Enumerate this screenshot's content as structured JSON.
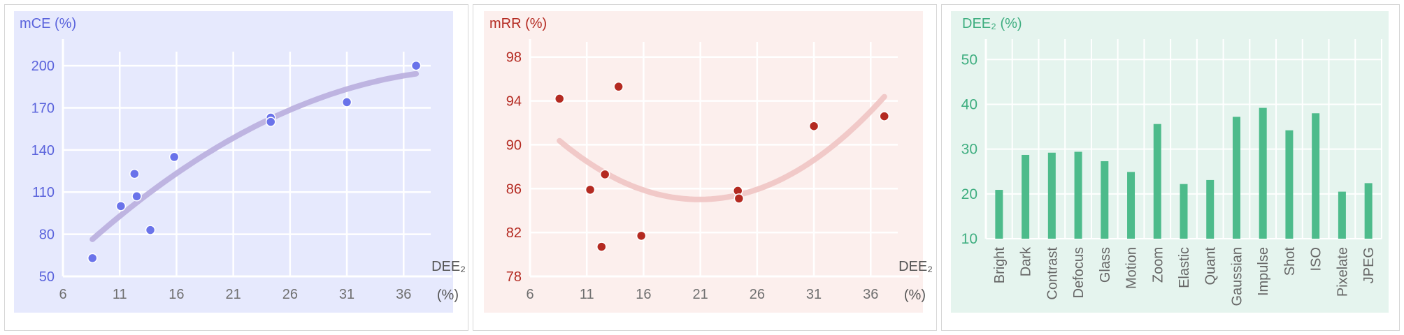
{
  "chart_data": [
    {
      "type": "scatter",
      "ylabel": "mCE (%)",
      "xlabel": "DEE₂ (%)",
      "xticks": [
        6,
        11,
        16,
        21,
        26,
        31,
        36
      ],
      "yticks": [
        50,
        80,
        110,
        140,
        170,
        200
      ],
      "xlim": [
        6,
        39
      ],
      "ylim": [
        50,
        207
      ],
      "grid": true,
      "trendline": "quadratic",
      "points": [
        {
          "x": 8.6,
          "y": 63
        },
        {
          "x": 11.1,
          "y": 100
        },
        {
          "x": 12.3,
          "y": 123
        },
        {
          "x": 12.5,
          "y": 107
        },
        {
          "x": 13.7,
          "y": 83
        },
        {
          "x": 15.8,
          "y": 135
        },
        {
          "x": 24.3,
          "y": 163
        },
        {
          "x": 24.3,
          "y": 160
        },
        {
          "x": 31.0,
          "y": 174
        },
        {
          "x": 37.1,
          "y": 200
        }
      ],
      "colors": {
        "background": "#e6e9fd",
        "point": "#6a73ea",
        "trend": "#b9aede",
        "axis_text": "#5a63dc",
        "grid": "#ffffff"
      }
    },
    {
      "type": "scatter",
      "ylabel": "mRR (%)",
      "xlabel": "DEE₂ (%)",
      "xticks": [
        6,
        11,
        16,
        21,
        26,
        31,
        36
      ],
      "yticks": [
        78,
        82,
        86,
        90,
        94,
        98
      ],
      "xlim": [
        6,
        39
      ],
      "ylim": [
        78,
        99
      ],
      "grid": true,
      "trendline": "quadratic",
      "points": [
        {
          "x": 8.6,
          "y": 94.2
        },
        {
          "x": 11.3,
          "y": 85.9
        },
        {
          "x": 12.3,
          "y": 80.7
        },
        {
          "x": 12.6,
          "y": 87.3
        },
        {
          "x": 13.8,
          "y": 95.3
        },
        {
          "x": 15.8,
          "y": 81.7
        },
        {
          "x": 24.3,
          "y": 85.8
        },
        {
          "x": 24.4,
          "y": 85.1
        },
        {
          "x": 31.0,
          "y": 91.7
        },
        {
          "x": 37.2,
          "y": 92.6
        }
      ],
      "colors": {
        "background": "#fcefed",
        "point": "#b42a21",
        "trend": "#f0c4c3",
        "axis_text": "#b42a21",
        "grid": "#ffffff"
      }
    },
    {
      "type": "bar",
      "ylabel": "DEE₂ (%)",
      "categories": [
        "Bright",
        "Dark",
        "Contrast",
        "Defocus",
        "Glass",
        "Motion",
        "Zoom",
        "Elastic",
        "Quant",
        "Gaussian",
        "Impulse",
        "Shot",
        "ISO",
        "Pixelate",
        "JPEG"
      ],
      "values": [
        20.9,
        28.7,
        29.2,
        29.4,
        27.3,
        24.9,
        35.6,
        22.2,
        23.1,
        37.2,
        39.2,
        34.2,
        38.0,
        20.5,
        22.4
      ],
      "yticks": [
        10,
        20,
        30,
        40,
        50
      ],
      "ylim": [
        10,
        53
      ],
      "grid": true,
      "colors": {
        "background": "#e5f4ee",
        "bar": "#4dbb8b",
        "axis_text": "#3fae80",
        "grid": "#ffffff"
      }
    }
  ]
}
